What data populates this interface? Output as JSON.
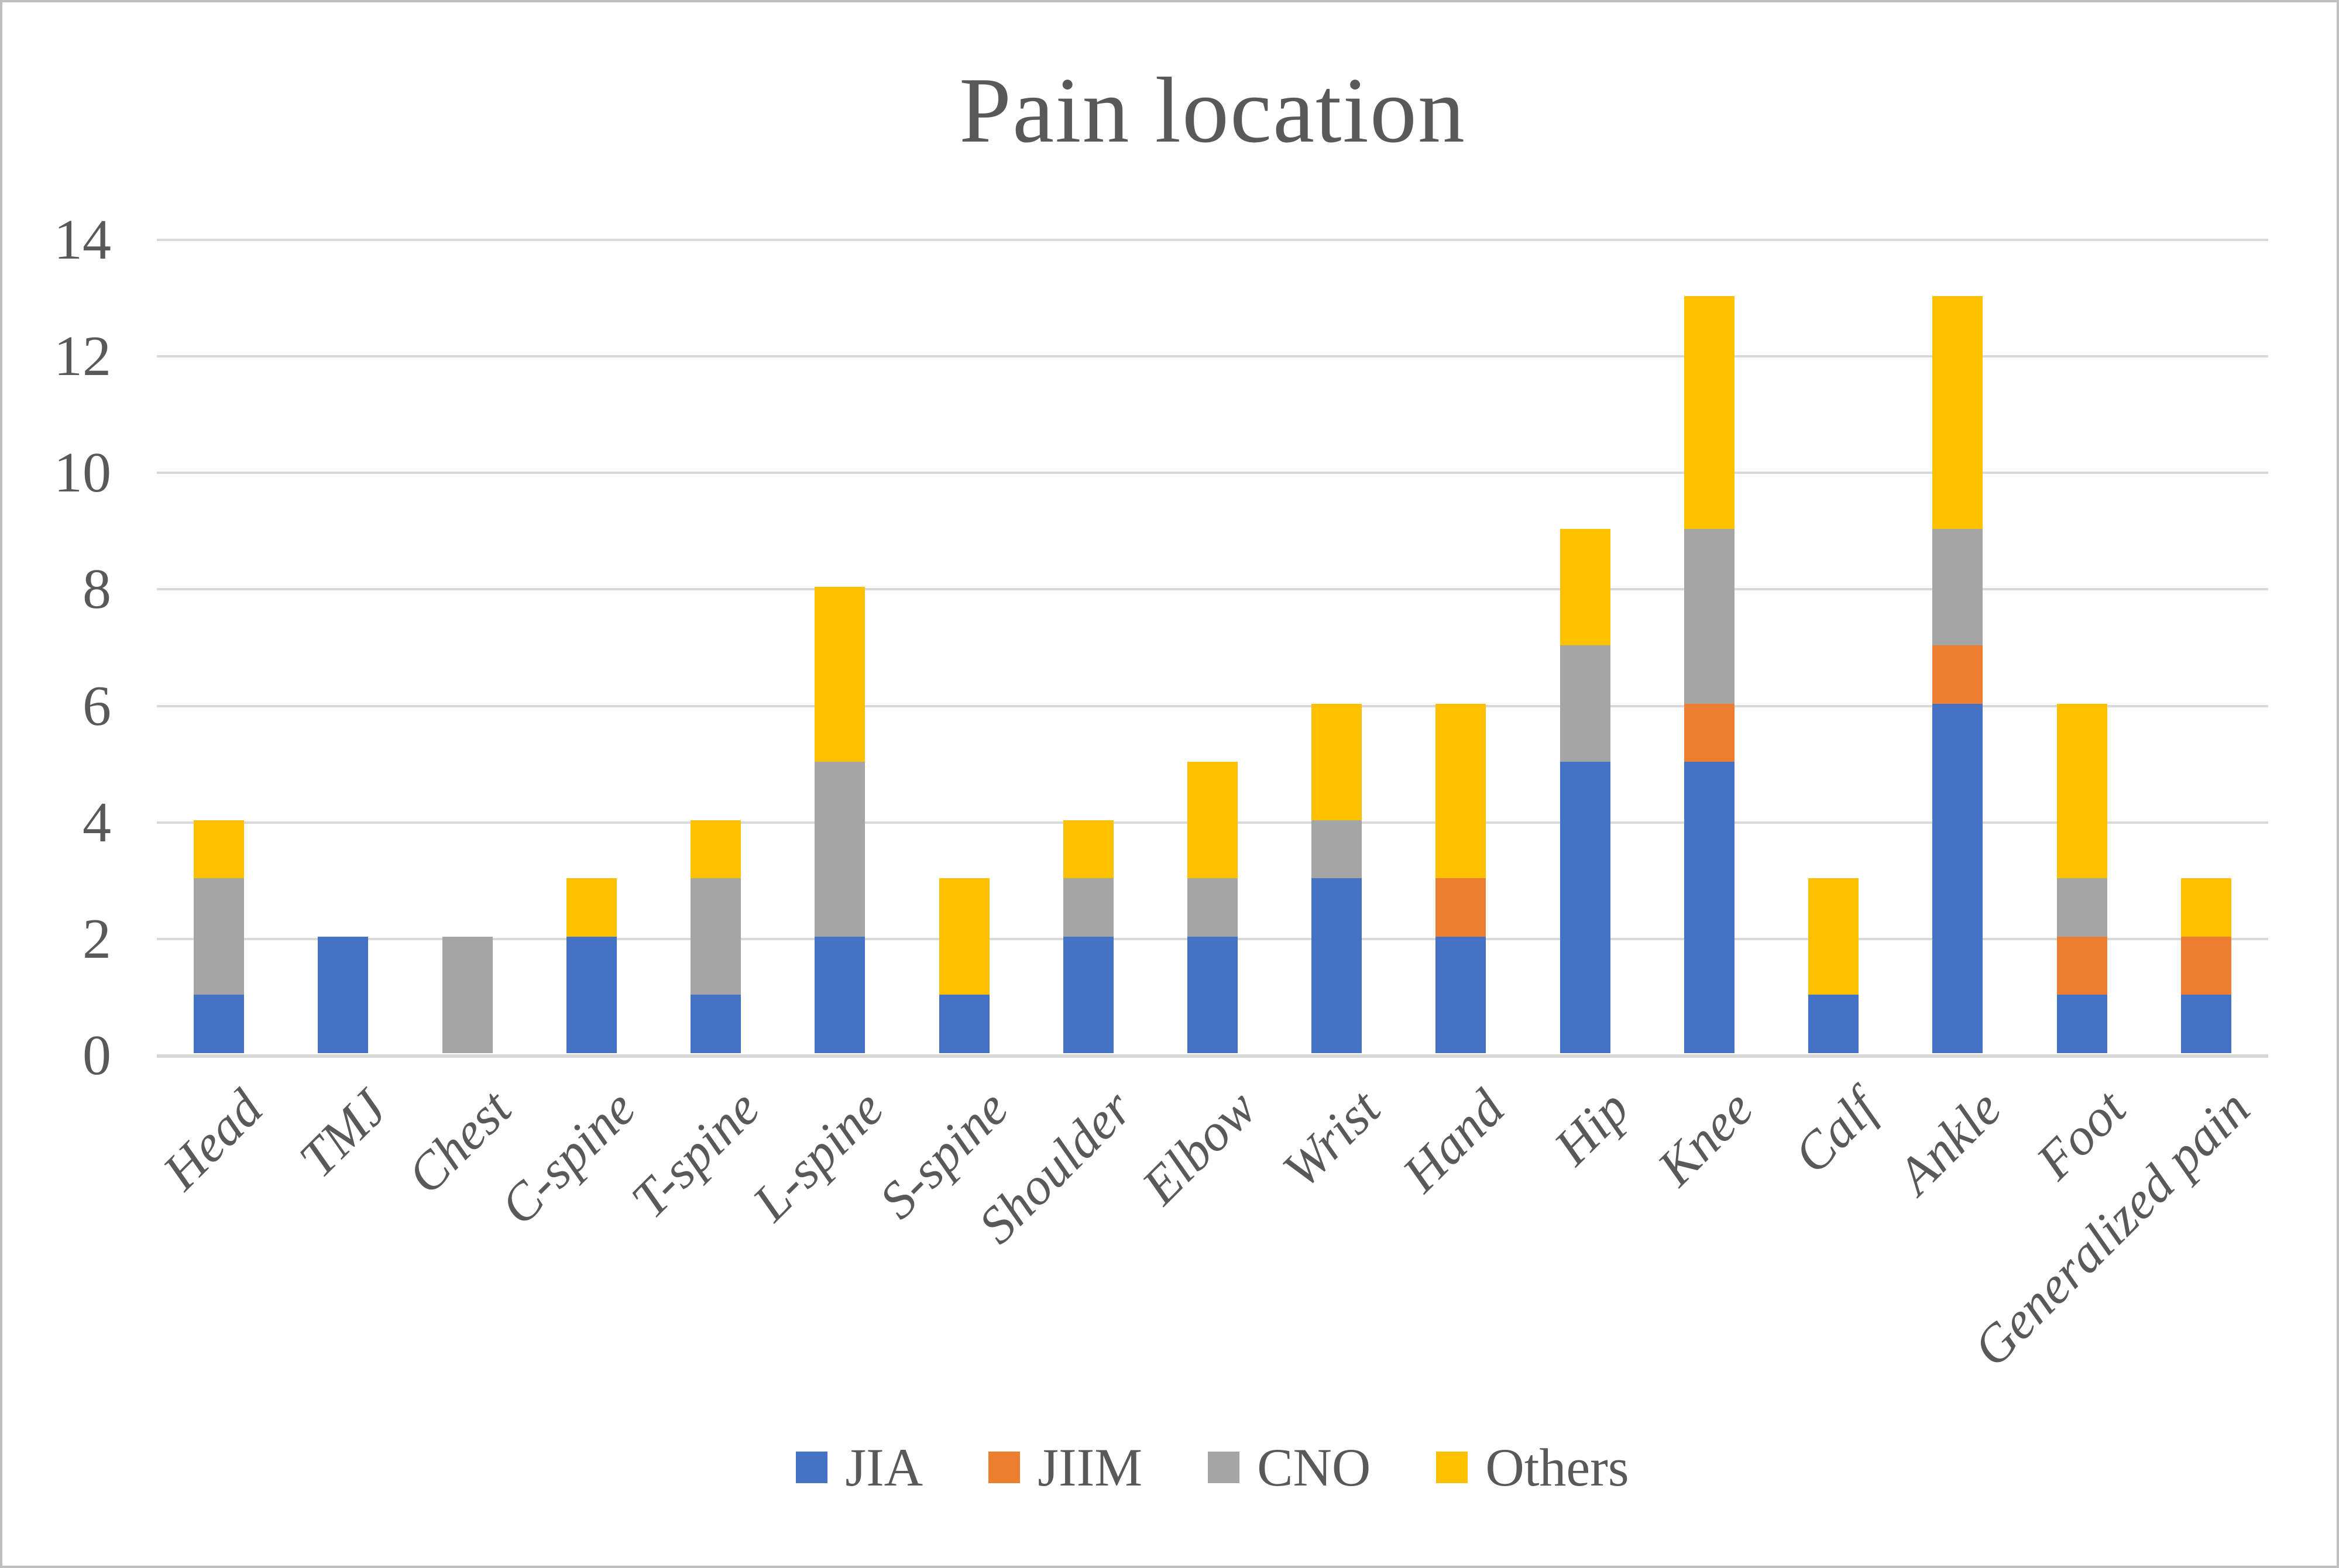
{
  "title": "Pain location",
  "chart_data": {
    "type": "bar",
    "stacked": true,
    "title": "Pain location",
    "xlabel": "",
    "ylabel": "",
    "ylim": [
      0,
      14
    ],
    "yticks": [
      0,
      2,
      4,
      6,
      8,
      10,
      12,
      14
    ],
    "grid": true,
    "legend_position": "bottom",
    "categories": [
      "Head",
      "TMJ",
      "Chest",
      "C-spine",
      "T-spine",
      "L-spine",
      "S-spine",
      "Shoulder",
      "Elbow",
      "Wrist",
      "Hand",
      "Hip",
      "Knee",
      "Calf",
      "Ankle",
      "Foot",
      "Generalized pain"
    ],
    "series": [
      {
        "name": "JIA",
        "color": "#4472C4",
        "values": [
          1,
          2,
          0,
          2,
          1,
          2,
          1,
          2,
          2,
          3,
          2,
          5,
          5,
          1,
          6,
          1,
          1
        ]
      },
      {
        "name": "JIIM",
        "color": "#ED7D31",
        "values": [
          0,
          0,
          0,
          0,
          0,
          0,
          0,
          0,
          0,
          0,
          1,
          0,
          1,
          0,
          1,
          1,
          1
        ]
      },
      {
        "name": "CNO",
        "color": "#A5A5A5",
        "values": [
          2,
          0,
          2,
          0,
          2,
          3,
          0,
          1,
          1,
          1,
          0,
          2,
          3,
          0,
          2,
          1,
          0
        ]
      },
      {
        "name": "Others",
        "color": "#FFC000",
        "values": [
          1,
          0,
          0,
          1,
          1,
          3,
          2,
          1,
          2,
          2,
          3,
          2,
          4,
          2,
          4,
          3,
          1
        ]
      }
    ],
    "totals": [
      4,
      2,
      2,
      3,
      4,
      8,
      3,
      4,
      5,
      6,
      6,
      9,
      13,
      3,
      13,
      6,
      3
    ]
  },
  "colors": {
    "text": "#595959",
    "gridline": "#D9D9D9",
    "frame_border": "#BFBFBF",
    "background": "#FFFFFF"
  }
}
